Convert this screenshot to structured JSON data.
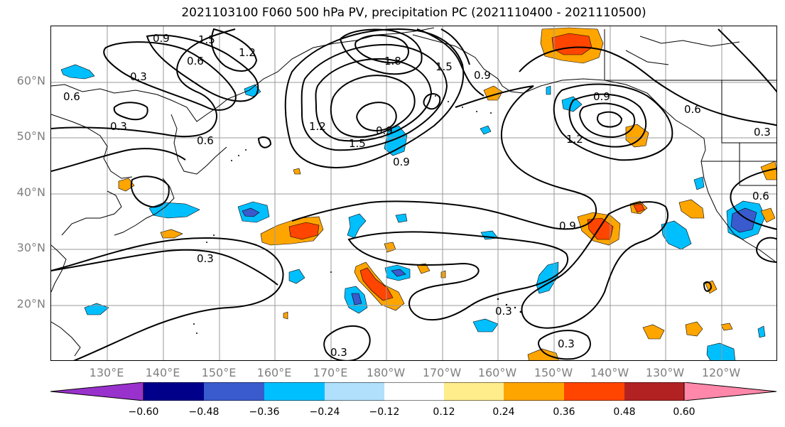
{
  "title": "2021103100 F060 500 hPa PV, precipitation PC (2021110400 - 2021110500)",
  "lat_labels": [
    "60°N",
    "50°N",
    "40°N",
    "30°N",
    "20°N"
  ],
  "lon_labels": [
    "130°E",
    "140°E",
    "150°E",
    "160°E",
    "170°E",
    "180°W",
    "170°W",
    "160°W",
    "150°W",
    "140°W",
    "130°W",
    "120°W"
  ],
  "pv_contour_labels": [
    "0.9",
    "1.5",
    "1.2",
    "0.6",
    "0.3",
    "0.6",
    "0.3",
    "0.6",
    "1.8",
    "1.5",
    "1.2",
    "0.9",
    "1.5",
    "0.9",
    "0.9",
    "0.6",
    "1.2",
    "0.3",
    "0.9",
    "0.3",
    "0.3",
    "0.3",
    "0.3",
    "0.6",
    "0.9"
  ],
  "colorbar": {
    "tick_labels": [
      "−0.60",
      "−0.48",
      "−0.36",
      "−0.24",
      "−0.12",
      "0.12",
      "0.24",
      "0.36",
      "0.48",
      "0.60"
    ],
    "colors": [
      "#9932cc",
      "#00008b",
      "#3a5bcd",
      "#00bfff",
      "#b0e0fb",
      "#ffffff",
      "#ffec8b",
      "#ffa500",
      "#ff4500",
      "#b22222",
      "#ff88aa"
    ]
  }
}
